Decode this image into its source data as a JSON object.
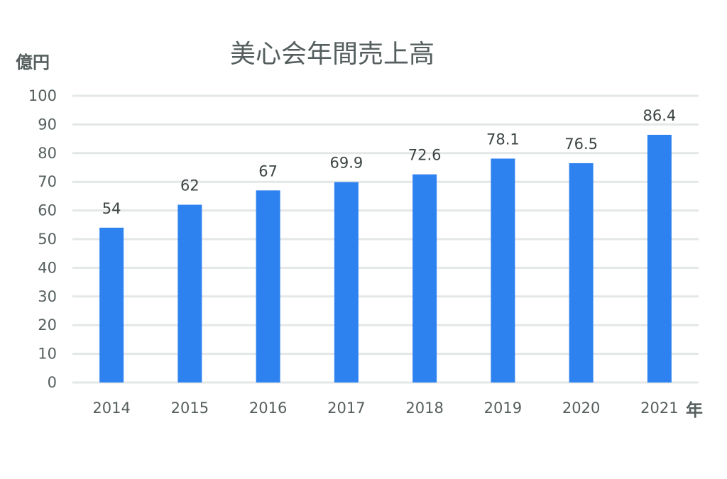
{
  "chart_data": {
    "type": "bar",
    "title": "美心会年間売上高",
    "ylabel": "億円",
    "xlabel": "年",
    "categories": [
      "2014",
      "2015",
      "2016",
      "2017",
      "2018",
      "2019",
      "2020",
      "2021"
    ],
    "values": [
      54,
      62,
      67,
      69.9,
      72.6,
      78.1,
      76.5,
      86.4
    ],
    "data_labels": [
      "54",
      "62",
      "67",
      "69.9",
      "72.6",
      "78.1",
      "76.5",
      "86.4"
    ],
    "ylim": [
      0,
      100
    ],
    "yticks": [
      0,
      10,
      20,
      30,
      40,
      50,
      60,
      70,
      80,
      90,
      100
    ],
    "grid": true,
    "legend": "none",
    "colors": {
      "bar": "#2e82f0",
      "grid": "#e4e7e7",
      "text": "#555e5e",
      "label": "#3c4444"
    }
  }
}
